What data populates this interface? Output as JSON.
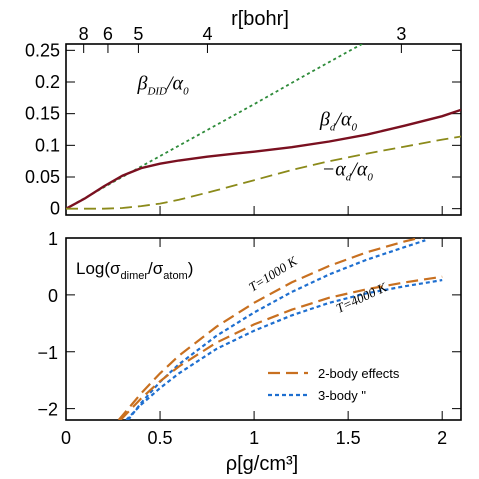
{
  "top_axis": {
    "label": "r[bohr]",
    "ticks": [
      {
        "label": "8",
        "rho": 0.094
      },
      {
        "label": "6",
        "rho": 0.223
      },
      {
        "label": "5",
        "rho": 0.385
      },
      {
        "label": "4",
        "rho": 0.752
      },
      {
        "label": "3",
        "rho": 1.783
      }
    ]
  },
  "chart_data": [
    {
      "type": "line",
      "panel": "top",
      "xlim": [
        0,
        2.1
      ],
      "ylim": [
        -0.01,
        0.26
      ],
      "yticks": [
        0,
        0.05,
        0.1,
        0.15,
        0.2,
        0.25
      ],
      "ytick_labels": [
        "0",
        "0.05",
        "0.1",
        "0.15",
        "0.2",
        "0.25"
      ],
      "annotations": [
        {
          "main": "β",
          "sub": "DID",
          "tail": "/α",
          "tail_sub": "0",
          "rho": 0.38,
          "y": 0.188
        },
        {
          "main": "β",
          "sub": "d",
          "tail": "/α",
          "tail_sub": "0",
          "rho": 1.35,
          "y": 0.131
        },
        {
          "main": "−α",
          "sub": "d",
          "tail": "/α",
          "tail_sub": "0",
          "rho": 1.36,
          "y": 0.052
        }
      ],
      "series": [
        {
          "id": "beta_DID",
          "color": "#2e8b3a",
          "dash": "3,3",
          "x": [
            0,
            0.25,
            0.5,
            0.75,
            1.0,
            1.25,
            1.5,
            1.58
          ],
          "y": [
            0,
            0.042,
            0.083,
            0.124,
            0.165,
            0.207,
            0.248,
            0.261
          ]
        },
        {
          "id": "beta_d",
          "color": "#7a1020",
          "dash": "",
          "x": [
            0,
            0.1,
            0.2,
            0.3,
            0.4,
            0.5,
            0.6,
            0.75,
            0.9,
            1.0,
            1.2,
            1.4,
            1.6,
            1.8,
            2.0,
            2.1
          ],
          "y": [
            0,
            0.016,
            0.035,
            0.052,
            0.064,
            0.071,
            0.076,
            0.082,
            0.087,
            0.09,
            0.097,
            0.106,
            0.117,
            0.131,
            0.146,
            0.156
          ]
        },
        {
          "id": "minus_alpha_d",
          "color": "#8b8a1a",
          "dash": "12,6",
          "x": [
            0,
            0.2,
            0.3,
            0.4,
            0.5,
            0.6,
            0.8,
            1.0,
            1.2,
            1.4,
            1.6,
            1.8,
            2.0,
            2.1
          ],
          "y": [
            0,
            0,
            0.001,
            0.004,
            0.008,
            0.014,
            0.029,
            0.045,
            0.061,
            0.075,
            0.087,
            0.098,
            0.109,
            0.114
          ]
        }
      ]
    },
    {
      "type": "line",
      "panel": "bottom",
      "xlim": [
        0,
        2.1
      ],
      "ylim": [
        -2.2,
        1.0
      ],
      "xticks": [
        0,
        0.5,
        1,
        1.5,
        2
      ],
      "xtick_labels": [
        "0",
        "0.5",
        "1",
        "1.5",
        "2"
      ],
      "yticks": [
        -2,
        -1,
        0,
        1
      ],
      "ytick_labels": [
        "−2",
        "−1",
        "0",
        "1"
      ],
      "xlabel": "ρ[g/cm³]",
      "panel_title": {
        "main": "Log(σ",
        "sub1": "dimer",
        "mid": "/σ",
        "sub2": "atom",
        "end": ")"
      },
      "curve_labels": [
        {
          "text": "T=1000 K",
          "rho": 0.99,
          "y": 0.05,
          "angle": -32
        },
        {
          "text": "T=4000 K",
          "rho": 1.45,
          "y": -0.32,
          "angle": -25
        }
      ],
      "legend": [
        {
          "label": "2-body effects",
          "color": "#c87020",
          "dash": "12,6"
        },
        {
          "label": "3-body   \"",
          "color": "#1e6fd0",
          "dash": "4,3"
        }
      ],
      "series": [
        {
          "group": "T=1000 K",
          "kind": "2-body",
          "color": "#c87020",
          "dash": "12,6",
          "x": [
            0.28,
            0.4,
            0.5,
            0.6,
            0.8,
            1.0,
            1.2,
            1.4,
            1.6,
            1.8,
            1.9
          ],
          "y": [
            -2.2,
            -1.73,
            -1.38,
            -1.07,
            -0.56,
            -0.14,
            0.22,
            0.51,
            0.75,
            0.94,
            1.02
          ]
        },
        {
          "group": "T=1000 K",
          "kind": "3-body",
          "color": "#1e6fd0",
          "dash": "4,3",
          "x": [
            0.33,
            0.4,
            0.5,
            0.6,
            0.8,
            1.0,
            1.2,
            1.4,
            1.6,
            1.8,
            1.91
          ],
          "y": [
            -2.2,
            -1.9,
            -1.53,
            -1.22,
            -0.72,
            -0.31,
            0.05,
            0.36,
            0.62,
            0.84,
            0.96
          ]
        },
        {
          "group": "T=4000 K",
          "kind": "2-body",
          "color": "#c87020",
          "dash": "12,6",
          "x": [
            0.29,
            0.4,
            0.5,
            0.6,
            0.8,
            1.0,
            1.2,
            1.4,
            1.6,
            1.8,
            2.0
          ],
          "y": [
            -2.2,
            -1.82,
            -1.52,
            -1.26,
            -0.84,
            -0.52,
            -0.26,
            -0.05,
            0.1,
            0.22,
            0.32
          ]
        },
        {
          "group": "T=4000 K",
          "kind": "3-body",
          "color": "#1e6fd0",
          "dash": "4,3",
          "x": [
            0.32,
            0.4,
            0.5,
            0.6,
            0.8,
            1.0,
            1.2,
            1.4,
            1.6,
            1.8,
            2.0
          ],
          "y": [
            -2.2,
            -1.93,
            -1.64,
            -1.38,
            -0.95,
            -0.63,
            -0.36,
            -0.14,
            0.03,
            0.15,
            0.26
          ]
        }
      ]
    }
  ]
}
